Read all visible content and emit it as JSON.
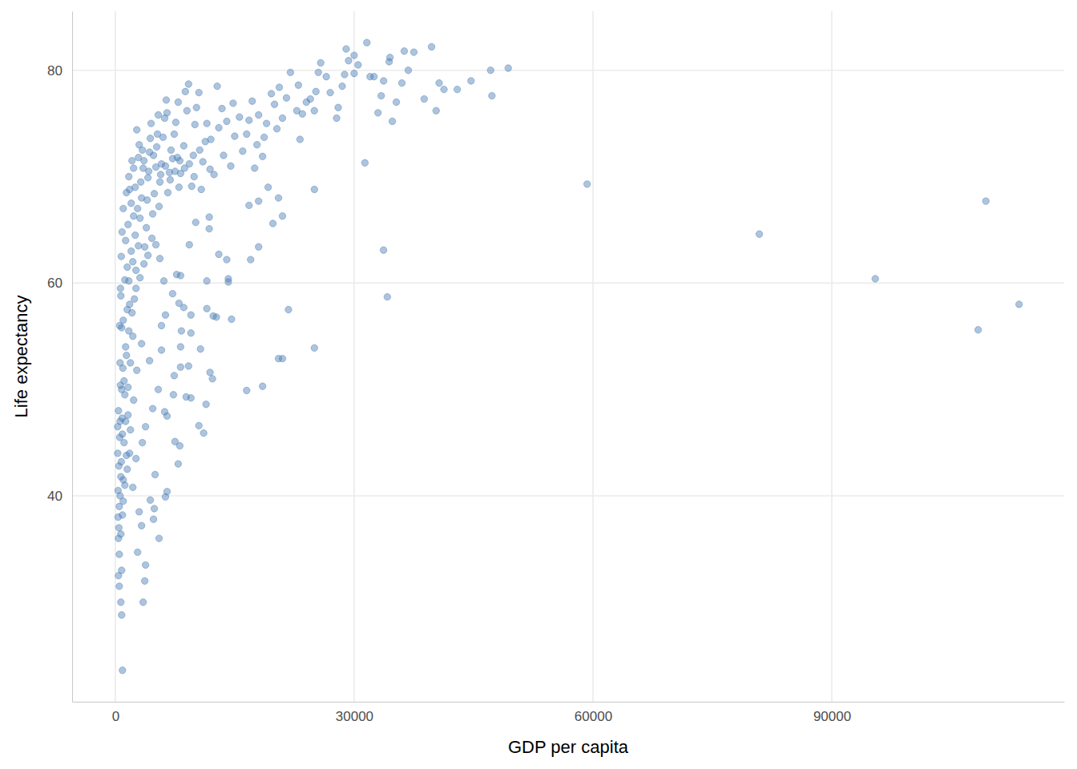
{
  "chart_data": {
    "type": "scatter",
    "x_label": "GDP per capita",
    "y_label": "Life expectancy",
    "color": "#4a7db4",
    "grid": true,
    "marker": "circle",
    "xlim": [
      -5423,
      119187
    ],
    "ylim": [
      20.65,
      85.55
    ],
    "xticks": [
      0,
      30000,
      60000,
      90000
    ],
    "yticks": [
      40,
      60,
      80
    ],
    "x": [
      59265,
      80895,
      95458,
      108382,
      109348,
      113523,
      33693,
      34168,
      31354,
      25010,
      21750,
      25010,
      20500,
      21000,
      16500,
      18500,
      14600,
      12300,
      12700,
      11500,
      14200,
      14200,
      11500,
      10700,
      11900,
      12200,
      10500,
      11100,
      11400,
      11800,
      11800,
      13000,
      14000,
      17000,
      18000,
      19800,
      21000,
      18000,
      19200,
      20500,
      16800,
      900,
      800,
      700,
      3500,
      3700,
      3800,
      2800,
      5500,
      4800,
      6300,
      6500,
      7900,
      8100,
      4400,
      4900,
      3300,
      5000,
      7500,
      6200,
      6500,
      8900,
      9500,
      7300,
      5400,
      9200,
      8200,
      7400,
      8200,
      8300,
      9500,
      9500,
      8000,
      8600,
      7700,
      8200,
      9300,
      10100,
      5800,
      5800,
      6300,
      7200,
      49357,
      47143,
      47306,
      44684,
      42952,
      40676,
      41283,
      40300,
      39725,
      38800,
      37500,
      36300,
      36800,
      36000,
      35300,
      34800,
      34500,
      34400,
      33700,
      33400,
      33000,
      32500,
      32000,
      31600,
      30500,
      30000,
      30000,
      29000,
      29300,
      28800,
      28500,
      28000,
      27800,
      27000,
      26500,
      25800,
      25500,
      25200,
      25000,
      24500,
      24000,
      23500,
      23200,
      23000,
      22800,
      22000,
      21500,
      21000,
      20600,
      20300,
      20000,
      19600,
      19000,
      18700,
      18500,
      18000,
      17800,
      17500,
      17200,
      16800,
      16500,
      16000,
      15600,
      15000,
      14800,
      14500,
      14000,
      13600,
      13400,
      12800,
      13000,
      12400,
      12000,
      11500,
      11000,
      10800,
      10500,
      10000,
      9800,
      9600,
      9200,
      9000,
      8600,
      8200,
      8000,
      7800,
      7600,
      7400,
      7200,
      7000,
      6800,
      6600,
      6400,
      6200,
      6000,
      5800,
      5600,
      5500,
      5300,
      5100,
      4900,
      4700,
      4500,
      4300,
      4100,
      4000,
      3900,
      3700,
      3500,
      3300,
      3100,
      3000,
      2900,
      2700,
      2600,
      2500,
      2400,
      2300,
      2200,
      2100,
      2000,
      1900,
      1800,
      1700,
      1600,
      1500,
      1400,
      1300,
      1200,
      1100,
      1000,
      950,
      900,
      850,
      800,
      750,
      700,
      650,
      600,
      550,
      500,
      450,
      400,
      350,
      300,
      1200,
      1500,
      1800,
      1000,
      700,
      1300,
      1600,
      2000,
      2200,
      2500,
      2800,
      3200,
      3600,
      4200,
      4800,
      5200,
      5700,
      6300,
      6900,
      7500,
      8100,
      8700,
      9300,
      9900,
      10600,
      11300,
      11900,
      1100,
      1400,
      1700,
      2100,
      2600,
      3100,
      3600,
      4100,
      4600,
      5100,
      5600,
      6100,
      1300,
      1600,
      1900,
      2300,
      2700,
      3300,
      3800,
      4300,
      4700,
      900,
      600,
      800,
      1000,
      1200,
      1500,
      1800,
      2200,
      2600,
      3000,
      3400,
      400,
      500,
      600,
      700,
      800,
      500,
      400,
      450,
      550,
      650,
      750,
      850,
      350,
      300,
      1000,
      1400,
      1700,
      2300,
      2900,
      3400,
      4400,
      5400,
      6500,
      7900,
      8800,
      10200
    ],
    "values": [
      69.3,
      64.6,
      60.4,
      55.6,
      67.7,
      58.0,
      63.1,
      58.7,
      71.3,
      68.8,
      57.5,
      53.9,
      52.9,
      52.9,
      49.9,
      50.3,
      56.6,
      56.9,
      56.8,
      57.6,
      60.4,
      60.1,
      60.2,
      53.8,
      51.6,
      51.0,
      46.6,
      45.9,
      48.6,
      65.1,
      66.2,
      62.7,
      62.2,
      62.2,
      63.4,
      65.6,
      66.3,
      67.7,
      69.0,
      68.0,
      67.3,
      23.6,
      28.8,
      30.0,
      30.0,
      32.0,
      33.5,
      34.7,
      36.0,
      37.8,
      39.9,
      40.4,
      43.0,
      44.7,
      39.6,
      38.8,
      37.2,
      42.0,
      45.1,
      47.9,
      47.5,
      49.3,
      49.2,
      49.5,
      50.0,
      52.2,
      52.1,
      51.3,
      54.0,
      55.5,
      55.3,
      57.0,
      58.1,
      57.7,
      60.8,
      60.7,
      63.6,
      65.7,
      53.7,
      56.0,
      57.0,
      59.0,
      80.2,
      80.0,
      77.6,
      79.0,
      78.2,
      78.8,
      78.2,
      76.2,
      82.2,
      77.3,
      81.7,
      81.8,
      80.0,
      78.8,
      77.0,
      75.2,
      81.2,
      80.8,
      79.0,
      77.6,
      76.0,
      79.4,
      79.4,
      82.6,
      80.5,
      81.4,
      79.7,
      82.0,
      80.9,
      79.6,
      78.5,
      76.5,
      75.5,
      77.9,
      79.4,
      80.7,
      79.8,
      78.0,
      76.2,
      77.3,
      77.0,
      75.9,
      73.5,
      78.6,
      76.2,
      79.8,
      77.4,
      75.5,
      78.4,
      74.5,
      76.8,
      77.8,
      75.0,
      73.7,
      71.9,
      75.8,
      73.0,
      70.8,
      77.1,
      75.3,
      74.0,
      72.4,
      75.6,
      73.8,
      76.9,
      71.0,
      75.2,
      72.0,
      76.4,
      78.5,
      74.6,
      70.2,
      73.5,
      75.0,
      71.4,
      68.8,
      77.9,
      74.9,
      72.0,
      69.1,
      78.7,
      76.2,
      72.9,
      70.3,
      69.0,
      71.8,
      75.1,
      74.0,
      71.7,
      72.5,
      70.4,
      68.5,
      77.2,
      75.5,
      73.7,
      71.2,
      69.5,
      67.2,
      74.0,
      70.9,
      68.4,
      66.5,
      75.0,
      72.3,
      69.9,
      67.8,
      65.2,
      63.4,
      70.8,
      68.0,
      66.1,
      73.0,
      63.5,
      74.4,
      61.2,
      69.0,
      58.5,
      66.3,
      55.0,
      71.5,
      63.0,
      52.5,
      68.8,
      60.2,
      47.6,
      57.5,
      43.8,
      54.0,
      49.5,
      45.0,
      41.5,
      52.0,
      38.2,
      47.3,
      55.8,
      43.2,
      36.4,
      50.4,
      40.0,
      45.5,
      34.5,
      42.8,
      48.0,
      38.0,
      44.0,
      60.3,
      61.5,
      58.0,
      56.5,
      58.8,
      64.0,
      65.5,
      67.5,
      62.0,
      64.5,
      67.0,
      69.5,
      71.5,
      70.5,
      72.0,
      72.8,
      70.2,
      71.0,
      69.7,
      70.5,
      71.5,
      70.8,
      71.2,
      70.0,
      72.5,
      73.3,
      70.7,
      50.8,
      53.2,
      55.5,
      57.2,
      59.5,
      60.5,
      61.8,
      62.6,
      64.2,
      63.6,
      62.3,
      60.2,
      47.0,
      50.2,
      46.2,
      49.0,
      51.8,
      54.3,
      46.5,
      52.7,
      48.2,
      45.8,
      47.0,
      50.0,
      39.5,
      41.0,
      42.5,
      44.0,
      40.8,
      43.5,
      38.5,
      45.0,
      36.0,
      39.0,
      52.5,
      41.8,
      33.0,
      31.5,
      32.5,
      37.0,
      56.0,
      59.5,
      62.5,
      64.8,
      40.5,
      46.5,
      67.0,
      68.5,
      70.0,
      70.8,
      71.8,
      72.5,
      73.6,
      75.8,
      76.0,
      77.0,
      78.0,
      76.5
    ]
  }
}
